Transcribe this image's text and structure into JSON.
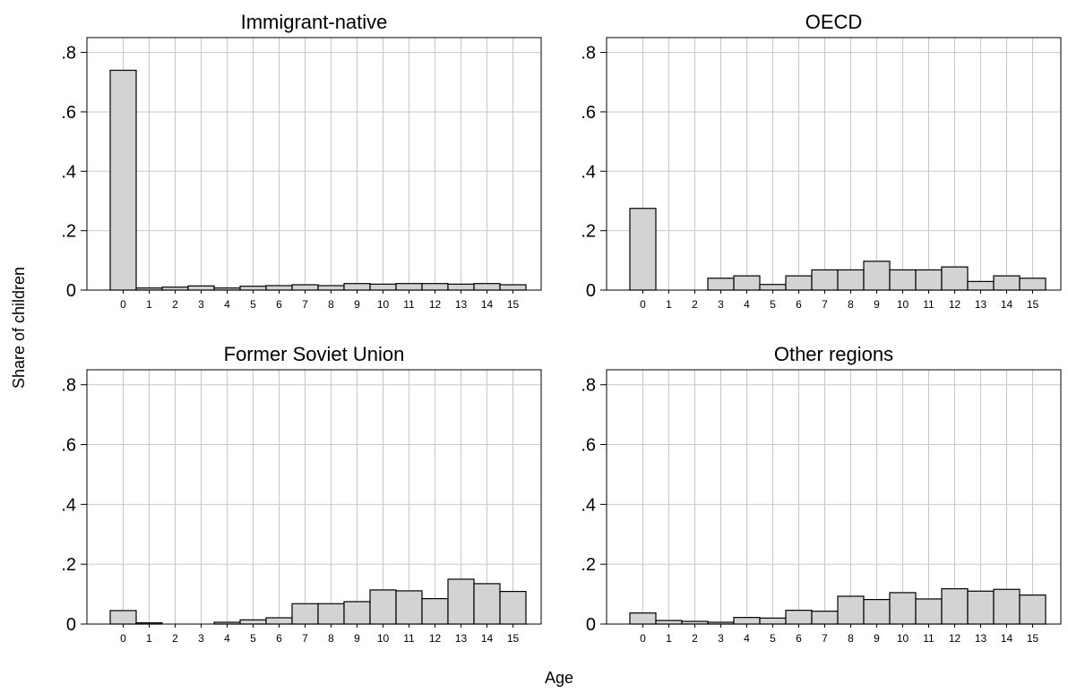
{
  "figure": {
    "ylabel": "Share of children",
    "xlabel": "Age"
  },
  "chart_data": [
    {
      "type": "bar",
      "title": "Immigrant-native",
      "categories": [
        "0",
        "1",
        "2",
        "3",
        "4",
        "5",
        "6",
        "7",
        "8",
        "9",
        "10",
        "11",
        "12",
        "13",
        "14",
        "15"
      ],
      "values": [
        0.74,
        0.007,
        0.01,
        0.014,
        0.007,
        0.013,
        0.015,
        0.018,
        0.015,
        0.022,
        0.02,
        0.022,
        0.022,
        0.02,
        0.022,
        0.018
      ],
      "ylim": [
        0,
        0.85
      ],
      "yticks": [
        0,
        0.2,
        0.4,
        0.6,
        0.8
      ],
      "ytick_labels": [
        "0",
        ".2",
        ".4",
        ".6",
        ".8"
      ],
      "grid": true
    },
    {
      "type": "bar",
      "title": "OECD",
      "categories": [
        "0",
        "1",
        "2",
        "3",
        "4",
        "5",
        "6",
        "7",
        "8",
        "9",
        "10",
        "11",
        "12",
        "13",
        "14",
        "15"
      ],
      "values": [
        0.275,
        0,
        0,
        0.04,
        0.048,
        0.019,
        0.048,
        0.068,
        0.068,
        0.097,
        0.068,
        0.068,
        0.078,
        0.029,
        0.048,
        0.04
      ],
      "ylim": [
        0,
        0.85
      ],
      "yticks": [
        0,
        0.2,
        0.4,
        0.6,
        0.8
      ],
      "ytick_labels": [
        "0",
        ".2",
        ".4",
        ".6",
        ".8"
      ],
      "grid": true
    },
    {
      "type": "bar",
      "title": "Former Soviet Union",
      "categories": [
        "0",
        "1",
        "2",
        "3",
        "4",
        "5",
        "6",
        "7",
        "8",
        "9",
        "10",
        "11",
        "12",
        "13",
        "14",
        "15"
      ],
      "values": [
        0.045,
        0.004,
        0,
        0,
        0.006,
        0.014,
        0.021,
        0.068,
        0.068,
        0.075,
        0.114,
        0.111,
        0.085,
        0.15,
        0.135,
        0.109
      ],
      "ylim": [
        0,
        0.85
      ],
      "yticks": [
        0,
        0.2,
        0.4,
        0.6,
        0.8
      ],
      "ytick_labels": [
        "0",
        ".2",
        ".4",
        ".6",
        ".8"
      ],
      "grid": true
    },
    {
      "type": "bar",
      "title": "Other regions",
      "categories": [
        "0",
        "1",
        "2",
        "3",
        "4",
        "5",
        "6",
        "7",
        "8",
        "9",
        "10",
        "11",
        "12",
        "13",
        "14",
        "15"
      ],
      "values": [
        0.037,
        0.012,
        0.009,
        0.006,
        0.022,
        0.02,
        0.046,
        0.043,
        0.093,
        0.082,
        0.105,
        0.084,
        0.118,
        0.11,
        0.116,
        0.097
      ],
      "ylim": [
        0,
        0.85
      ],
      "yticks": [
        0,
        0.2,
        0.4,
        0.6,
        0.8
      ],
      "ytick_labels": [
        "0",
        ".2",
        ".4",
        ".6",
        ".8"
      ],
      "grid": true
    }
  ]
}
